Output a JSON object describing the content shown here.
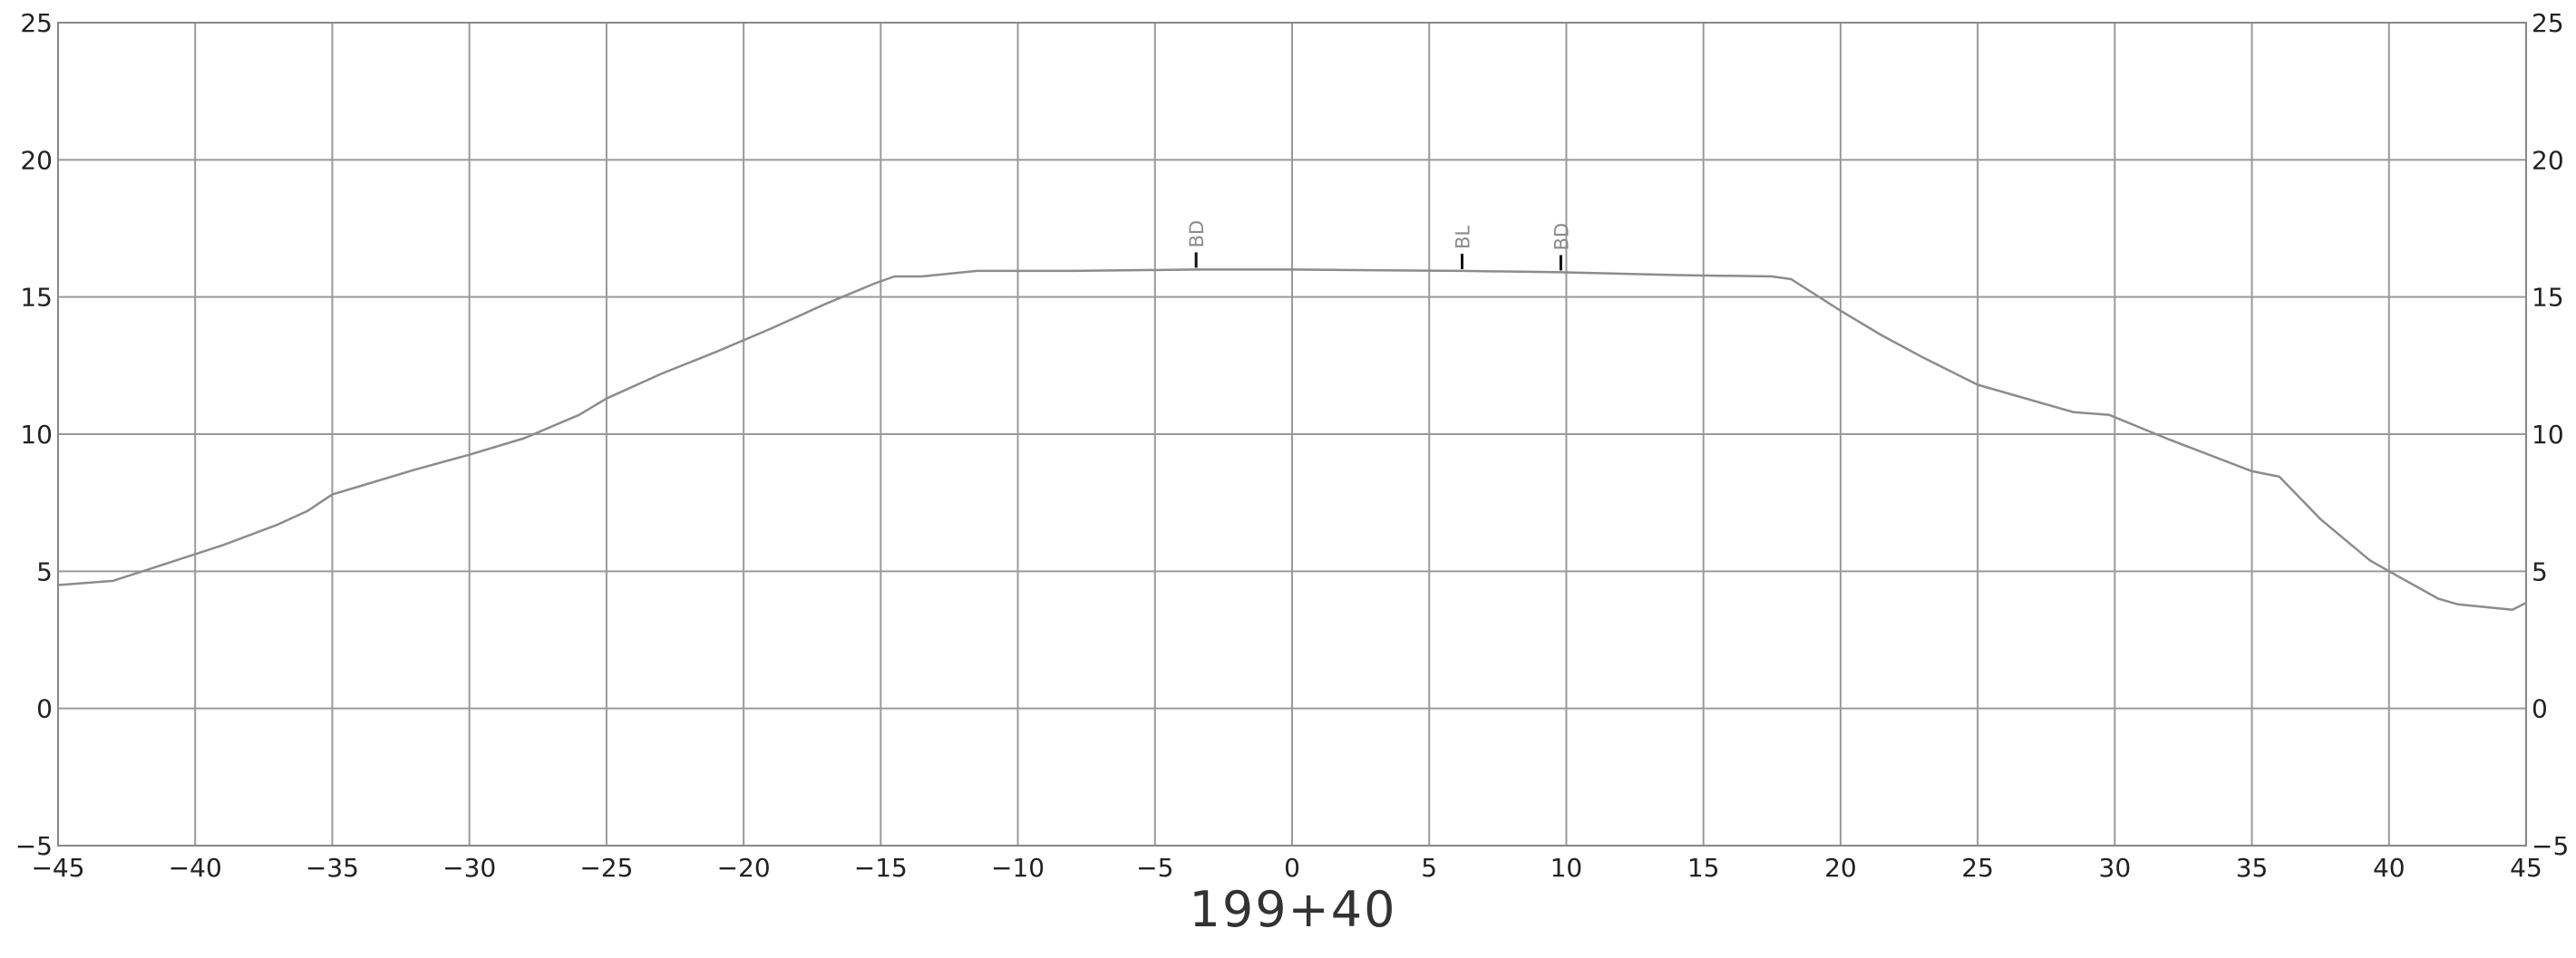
{
  "chart_data": {
    "type": "line",
    "title": "",
    "station_label": "199+40",
    "xlabel": "",
    "ylabel": "",
    "xlim": [
      -45,
      45
    ],
    "ylim": [
      -5,
      25
    ],
    "grid": true,
    "x_ticks": [
      -45,
      -40,
      -35,
      -30,
      -25,
      -20,
      -15,
      -10,
      -5,
      0,
      5,
      10,
      15,
      20,
      25,
      30,
      35,
      40,
      45
    ],
    "y_ticks": [
      -5,
      0,
      5,
      10,
      15,
      20,
      25
    ],
    "x_tick_labels": [
      "−45",
      "−40",
      "−35",
      "−30",
      "−25",
      "−20",
      "−15",
      "−10",
      "−5",
      "0",
      "5",
      "10",
      "15",
      "20",
      "25",
      "30",
      "35",
      "40",
      "45"
    ],
    "y_tick_labels": [
      "−5",
      "0",
      "5",
      "10",
      "15",
      "20",
      "25"
    ],
    "series": [
      {
        "points": [
          [
            -45,
            4.5
          ],
          [
            -43,
            4.65
          ],
          [
            -41,
            5.3
          ],
          [
            -39,
            5.95
          ],
          [
            -37,
            6.7
          ],
          [
            -35.9,
            7.2
          ],
          [
            -35,
            7.8
          ],
          [
            -34,
            8.1
          ],
          [
            -32,
            8.7
          ],
          [
            -30,
            9.25
          ],
          [
            -28,
            9.85
          ],
          [
            -26,
            10.7
          ],
          [
            -25,
            11.3
          ],
          [
            -23,
            12.2
          ],
          [
            -21,
            13.0
          ],
          [
            -19,
            13.85
          ],
          [
            -17,
            14.75
          ],
          [
            -15.2,
            15.5
          ],
          [
            -14.5,
            15.75
          ],
          [
            -13.5,
            15.75
          ],
          [
            -11.5,
            15.95
          ],
          [
            -8,
            15.95
          ],
          [
            -3.5,
            16.0
          ],
          [
            0,
            16.0
          ],
          [
            6.2,
            15.95
          ],
          [
            9.8,
            15.9
          ],
          [
            14,
            15.8
          ],
          [
            17.5,
            15.75
          ],
          [
            18.2,
            15.65
          ],
          [
            20,
            14.5
          ],
          [
            21.5,
            13.6
          ],
          [
            23,
            12.8
          ],
          [
            25,
            11.8
          ],
          [
            28.5,
            10.8
          ],
          [
            29.8,
            10.7
          ],
          [
            32,
            9.8
          ],
          [
            35,
            8.65
          ],
          [
            36,
            8.45
          ],
          [
            37.5,
            6.9
          ],
          [
            39.3,
            5.4
          ],
          [
            40,
            5.0
          ],
          [
            41.8,
            4.0
          ],
          [
            42.5,
            3.8
          ],
          [
            44.5,
            3.6
          ],
          [
            45,
            3.85
          ]
        ],
        "color": "#8c8c8c"
      }
    ],
    "markers": [
      {
        "label": "BD",
        "x": -3.5,
        "y": 16.0
      },
      {
        "label": "BL",
        "x": 6.2,
        "y": 15.95
      },
      {
        "label": "BD",
        "x": 9.8,
        "y": 15.9
      }
    ],
    "colors": {
      "grid": "#9a9a9a",
      "axis_frame": "#888888",
      "profile": "#8c8c8c",
      "marker_tick": "#111111",
      "marker_text": "#8a8a8a",
      "tick_text": "#222222"
    }
  }
}
